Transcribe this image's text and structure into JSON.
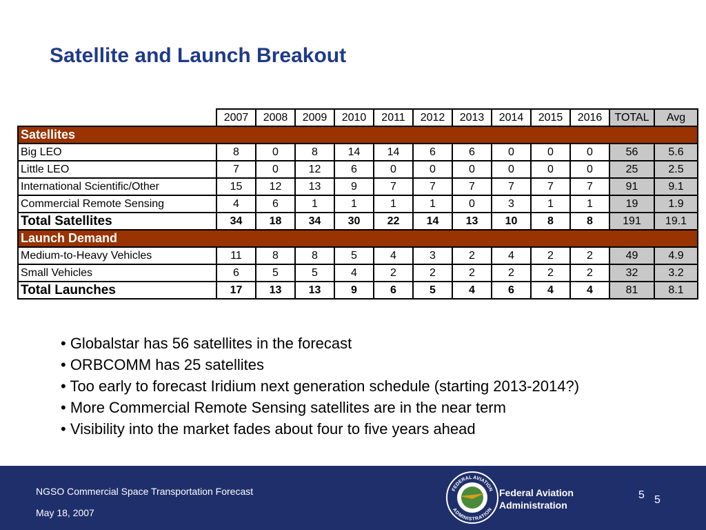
{
  "title": "Satellite and Launch Breakout",
  "table": {
    "columns": [
      "2007",
      "2008",
      "2009",
      "2010",
      "2011",
      "2012",
      "2013",
      "2014",
      "2015",
      "2016",
      "TOTAL",
      "Avg"
    ],
    "sections": [
      {
        "name": "Satellites",
        "rows": [
          {
            "label": "Big LEO",
            "values": [
              8,
              0,
              8,
              14,
              14,
              6,
              6,
              0,
              0,
              0,
              56,
              5.6
            ]
          },
          {
            "label": "Little LEO",
            "values": [
              7,
              0,
              12,
              6,
              0,
              0,
              0,
              0,
              0,
              0,
              25,
              2.5
            ]
          },
          {
            "label": "International Scientific/Other",
            "values": [
              15,
              12,
              13,
              9,
              7,
              7,
              7,
              7,
              7,
              7,
              91,
              9.1
            ]
          },
          {
            "label": "Commercial Remote Sensing",
            "values": [
              4,
              6,
              1,
              1,
              1,
              1,
              0,
              3,
              1,
              1,
              19,
              1.9
            ]
          }
        ],
        "total": {
          "label": "Total Satellites",
          "values": [
            34,
            18,
            34,
            30,
            22,
            14,
            13,
            10,
            8,
            8,
            191,
            19.1
          ]
        }
      },
      {
        "name": "Launch Demand",
        "rows": [
          {
            "label": "Medium-to-Heavy Vehicles",
            "values": [
              11,
              8,
              8,
              5,
              4,
              3,
              2,
              4,
              2,
              2,
              49,
              4.9
            ]
          },
          {
            "label": "Small Vehicles",
            "values": [
              6,
              5,
              5,
              4,
              2,
              2,
              2,
              2,
              2,
              2,
              32,
              3.2
            ]
          }
        ],
        "total": {
          "label": "Total Launches",
          "values": [
            17,
            13,
            13,
            9,
            6,
            5,
            4,
            6,
            4,
            4,
            81,
            8.1
          ]
        }
      }
    ]
  },
  "bullets": [
    "• Globalstar has 56 satellites in the forecast",
    "• ORBCOMM has 25 satellites",
    "• Too early to forecast Iridium next generation schedule (starting 2013-2014?)",
    "• More Commercial Remote Sensing satellites are in the near term",
    "• Visibility into the market fades about four to five years ahead"
  ],
  "footer": {
    "presentation": "NGSO Commercial Space Transportation Forecast",
    "date": "May 18, 2007",
    "seal_top": "FEDERAL AVIATION",
    "seal_bottom": "ADMINISTRATION",
    "agency": [
      "Federal Aviation",
      "Administration"
    ],
    "page_numbers": [
      "5",
      "5"
    ]
  }
}
